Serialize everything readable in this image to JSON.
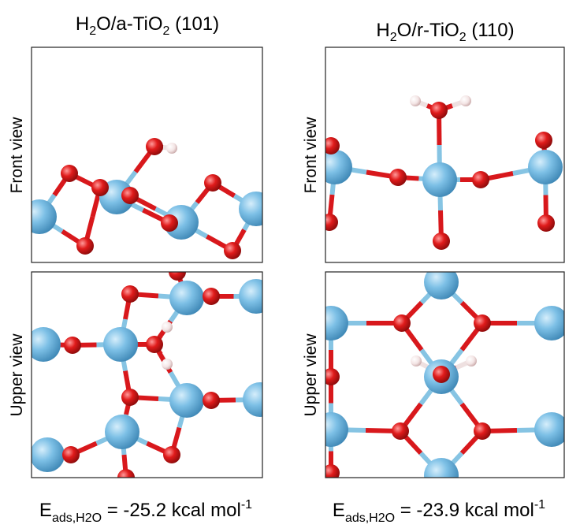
{
  "panels": [
    {
      "title": [
        "H",
        "2",
        "O/a-TiO",
        "2",
        " (101)"
      ],
      "energy": [
        "E",
        "ads,H2O",
        " = -25.2 kcal mol",
        "-1"
      ]
    },
    {
      "title": [
        "H",
        "2",
        "O/r-TiO",
        "2",
        " (110)"
      ],
      "energy": [
        "E",
        "ads,H2O",
        " = -23.9 kcal mol",
        "-1"
      ]
    }
  ],
  "row_labels": [
    "Front view",
    "Upper view"
  ]
}
